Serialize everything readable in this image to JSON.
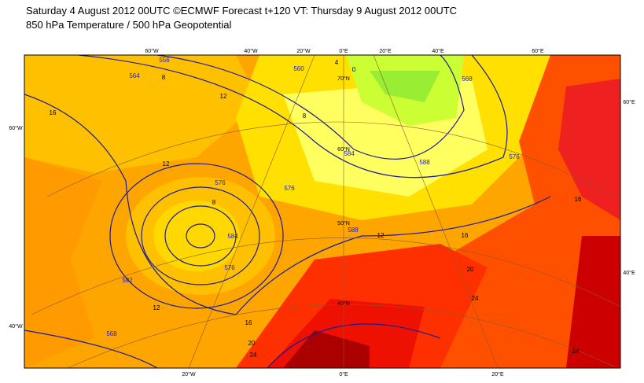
{
  "header": {
    "title": "Saturday 4 August 2012 00UTC ©ECMWF Forecast t+120 VT: Thursday 9 August 2012 00UTC",
    "subtitle": "850 hPa Temperature / 500 hPa Geopotential"
  },
  "longitude_labels": [
    "60°W",
    "40°W",
    "20°W",
    "0°E",
    "20°E",
    "40°E",
    "60°E",
    "20°W",
    "0°E",
    "20°E"
  ],
  "latitude_labels": [
    "60°W",
    "40°W",
    "60°E",
    "40°E",
    "70°N",
    "60°N",
    "50°N",
    "40°N"
  ],
  "temperature_labels": [
    "12",
    "8",
    "12",
    "8",
    "12",
    "16",
    "20",
    "24",
    "12",
    "16",
    "16",
    "20",
    "24",
    "24",
    "16",
    "8",
    "4",
    "0"
  ],
  "geopotential_labels": [
    "556",
    "564",
    "576",
    "576",
    "584",
    "576",
    "592",
    "568",
    "588",
    "584",
    "588",
    "576",
    "568",
    "560"
  ]
}
